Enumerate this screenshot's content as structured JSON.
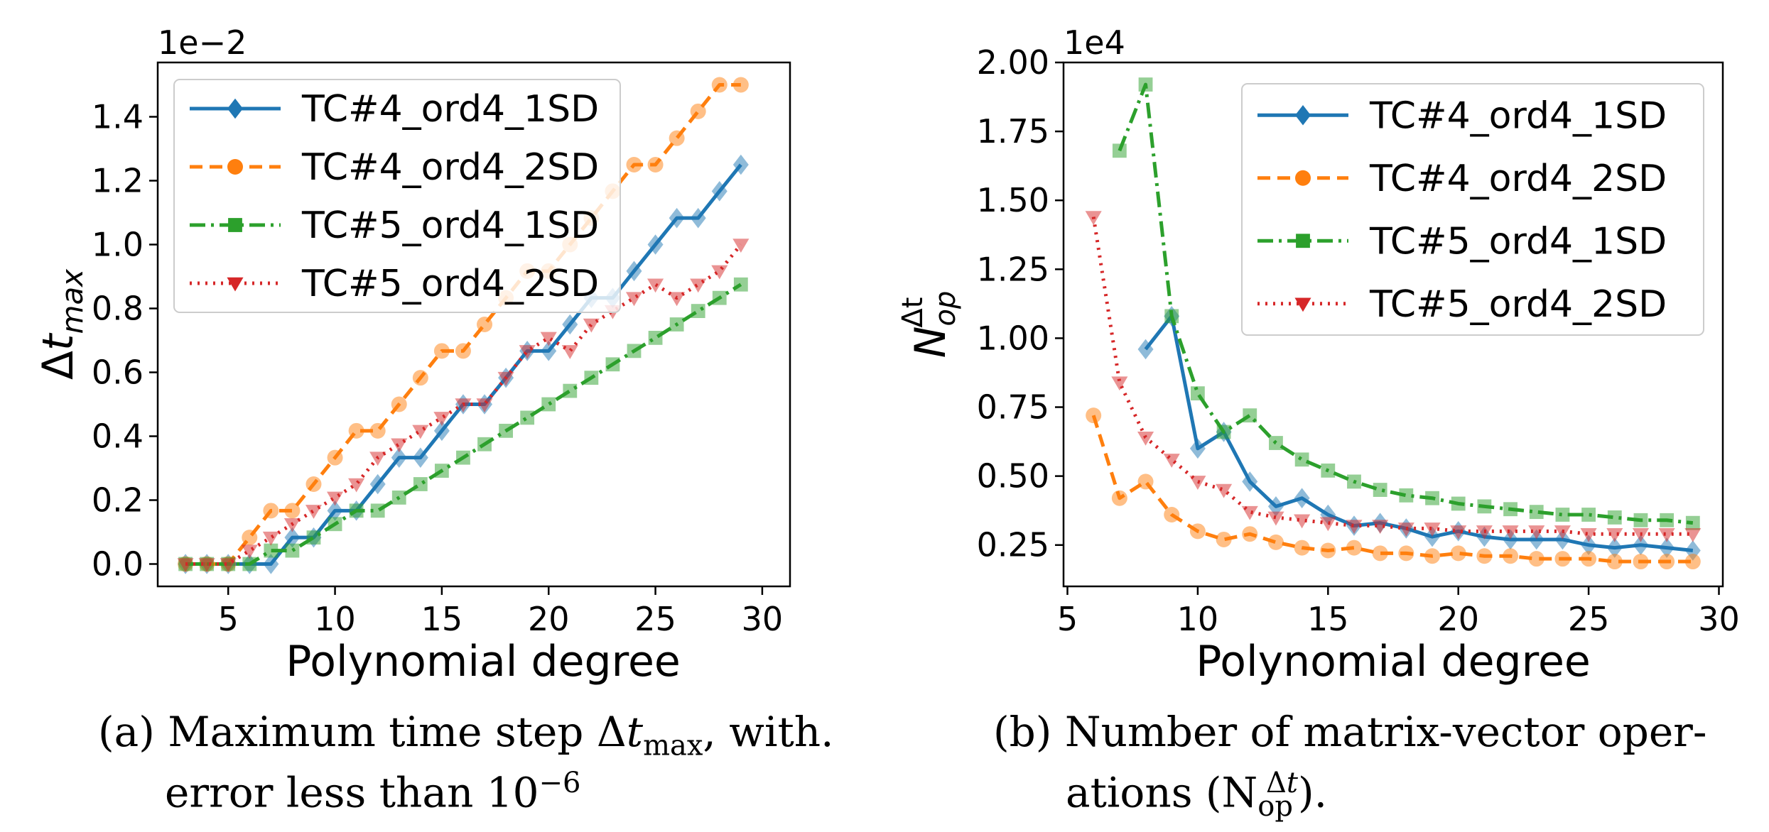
{
  "chart_data": [
    {
      "type": "line",
      "yaxis_label_parts": [
        "Δ",
        "t",
        "max"
      ],
      "xlabel": "Polynomial degree",
      "offset_text": "1e−2",
      "xlim": [
        1.7,
        31.3
      ],
      "ylim": [
        -0.07,
        1.57
      ],
      "xticks": [
        5,
        10,
        15,
        20,
        25,
        30
      ],
      "yticks": [
        0.0,
        0.2,
        0.4,
        0.6,
        0.8,
        1.0,
        1.2,
        1.4
      ],
      "ytick_labels": [
        "0.0",
        "0.2",
        "0.4",
        "0.6",
        "0.8",
        "1.0",
        "1.2",
        "1.4"
      ],
      "grid": false,
      "legend_position": "upper-left",
      "series": [
        {
          "name": "TC#4_ord4_1SD",
          "x": [
            3,
            4,
            5,
            6,
            7,
            8,
            9,
            10,
            11,
            12,
            13,
            14,
            15,
            16,
            17,
            18,
            19,
            20,
            21,
            22,
            23,
            24,
            25,
            26,
            27,
            28,
            29
          ],
          "y": [
            0.0,
            0.0,
            0.0,
            0.0,
            0.0,
            0.083,
            0.083,
            0.167,
            0.167,
            0.25,
            0.333,
            0.333,
            0.417,
            0.5,
            0.5,
            0.583,
            0.667,
            0.667,
            0.75,
            0.833,
            0.833,
            0.917,
            1.0,
            1.083,
            1.083,
            1.167,
            1.25
          ]
        },
        {
          "name": "TC#4_ord4_2SD",
          "x": [
            3,
            4,
            5,
            6,
            7,
            8,
            9,
            10,
            11,
            12,
            13,
            14,
            15,
            16,
            17,
            18,
            19,
            20,
            21,
            22,
            23,
            24,
            25,
            26,
            27,
            28,
            29
          ],
          "y": [
            0.0,
            0.0,
            0.0,
            0.083,
            0.167,
            0.167,
            0.25,
            0.333,
            0.417,
            0.417,
            0.5,
            0.583,
            0.667,
            0.667,
            0.75,
            0.833,
            0.917,
            0.917,
            1.0,
            1.083,
            1.167,
            1.25,
            1.25,
            1.333,
            1.417,
            1.5,
            1.5
          ]
        },
        {
          "name": "TC#5_ord4_1SD",
          "x": [
            3,
            4,
            5,
            6,
            7,
            8,
            9,
            10,
            11,
            12,
            13,
            14,
            15,
            16,
            17,
            18,
            19,
            20,
            21,
            22,
            23,
            24,
            25,
            26,
            27,
            28,
            29
          ],
          "y": [
            0.0,
            0.0,
            0.0,
            0.0,
            0.042,
            0.042,
            0.083,
            0.125,
            0.167,
            0.167,
            0.208,
            0.25,
            0.292,
            0.333,
            0.375,
            0.417,
            0.458,
            0.5,
            0.542,
            0.583,
            0.625,
            0.667,
            0.708,
            0.75,
            0.792,
            0.833,
            0.875
          ]
        },
        {
          "name": "TC#5_ord4_2SD",
          "x": [
            3,
            4,
            5,
            6,
            7,
            8,
            9,
            10,
            11,
            12,
            13,
            14,
            15,
            16,
            17,
            18,
            19,
            20,
            21,
            22,
            23,
            24,
            25,
            26,
            27,
            28,
            29
          ],
          "y": [
            0.0,
            0.0,
            0.0,
            0.042,
            0.083,
            0.125,
            0.167,
            0.208,
            0.25,
            0.333,
            0.375,
            0.417,
            0.458,
            0.5,
            0.5,
            0.583,
            0.667,
            0.708,
            0.667,
            0.75,
            0.792,
            0.833,
            0.875,
            0.833,
            0.875,
            0.917,
            1.0
          ]
        }
      ]
    },
    {
      "type": "line",
      "yaxis_label_parts": [
        "N",
        "op",
        "Δt"
      ],
      "xlabel": "Polynomial degree",
      "offset_text": "1e4",
      "xlim": [
        4.85,
        30.15
      ],
      "ylim": [
        0.1,
        2.0
      ],
      "xticks": [
        5,
        10,
        15,
        20,
        25,
        30
      ],
      "yticks": [
        0.25,
        0.5,
        0.75,
        1.0,
        1.25,
        1.5,
        1.75,
        2.0
      ],
      "ytick_labels": [
        "0.25",
        "0.50",
        "0.75",
        "1.00",
        "1.25",
        "1.50",
        "1.75",
        "2.00"
      ],
      "grid": false,
      "legend_position": "upper-right",
      "series": [
        {
          "name": "TC#4_ord4_1SD",
          "x": [
            8,
            9,
            10,
            11,
            12,
            13,
            14,
            15,
            16,
            17,
            18,
            19,
            20,
            21,
            22,
            23,
            24,
            25,
            26,
            27,
            28,
            29
          ],
          "y": [
            0.96,
            1.08,
            0.6,
            0.66,
            0.48,
            0.39,
            0.42,
            0.36,
            0.32,
            0.33,
            0.31,
            0.28,
            0.3,
            0.28,
            0.27,
            0.27,
            0.27,
            0.25,
            0.24,
            0.25,
            0.24,
            0.23
          ]
        },
        {
          "name": "TC#4_ord4_2SD",
          "x": [
            6,
            7,
            8,
            9,
            10,
            11,
            12,
            13,
            14,
            15,
            16,
            17,
            18,
            19,
            20,
            21,
            22,
            23,
            24,
            25,
            26,
            27,
            28,
            29
          ],
          "y": [
            0.72,
            0.42,
            0.48,
            0.36,
            0.3,
            0.27,
            0.29,
            0.26,
            0.24,
            0.23,
            0.24,
            0.22,
            0.22,
            0.21,
            0.22,
            0.21,
            0.21,
            0.2,
            0.2,
            0.2,
            0.19,
            0.19,
            0.19,
            0.19
          ]
        },
        {
          "name": "TC#5_ord4_1SD",
          "x": [
            7,
            8,
            9,
            10,
            11,
            12,
            13,
            14,
            15,
            16,
            17,
            18,
            19,
            20,
            21,
            22,
            23,
            24,
            25,
            26,
            27,
            28,
            29
          ],
          "y": [
            1.68,
            1.92,
            1.08,
            0.8,
            0.66,
            0.72,
            0.62,
            0.56,
            0.52,
            0.48,
            0.45,
            0.43,
            0.42,
            0.4,
            0.39,
            0.38,
            0.37,
            0.36,
            0.36,
            0.35,
            0.34,
            0.34,
            0.33
          ]
        },
        {
          "name": "TC#5_ord4_2SD",
          "x": [
            6,
            7,
            8,
            9,
            10,
            11,
            12,
            13,
            14,
            15,
            16,
            17,
            18,
            19,
            20,
            21,
            22,
            23,
            24,
            25,
            26,
            27,
            28,
            29
          ],
          "y": [
            1.44,
            0.84,
            0.64,
            0.56,
            0.48,
            0.45,
            0.37,
            0.35,
            0.34,
            0.33,
            0.32,
            0.32,
            0.31,
            0.31,
            0.3,
            0.3,
            0.3,
            0.3,
            0.3,
            0.29,
            0.29,
            0.29,
            0.29,
            0.29
          ]
        }
      ]
    }
  ],
  "series_styles": [
    {
      "color": "#1f77b4",
      "dash": "",
      "marker": "diamond"
    },
    {
      "color": "#ff7f0e",
      "dash": "18,10",
      "marker": "circle"
    },
    {
      "color": "#2ca02c",
      "dash": "22,8,4,8",
      "marker": "square"
    },
    {
      "color": "#d62728",
      "dash": "3,8",
      "marker": "triangle-down"
    }
  ],
  "captions": {
    "a_prefix": "(a)",
    "a_line1": "Maximum time step",
    "a_delta": "Δ",
    "a_t": "t",
    "a_sub": "max",
    "a_tail": ", with.",
    "a_line2": "error less than 10",
    "a_exp": "−6",
    "b_prefix": "(b)",
    "b_line1": "Number of matrix-vector oper-",
    "b_line2_start": "ations (N",
    "b_sub": "op",
    "b_sup_delta": "Δ",
    "b_sup_t": "t",
    "b_line2_end": ")."
  }
}
